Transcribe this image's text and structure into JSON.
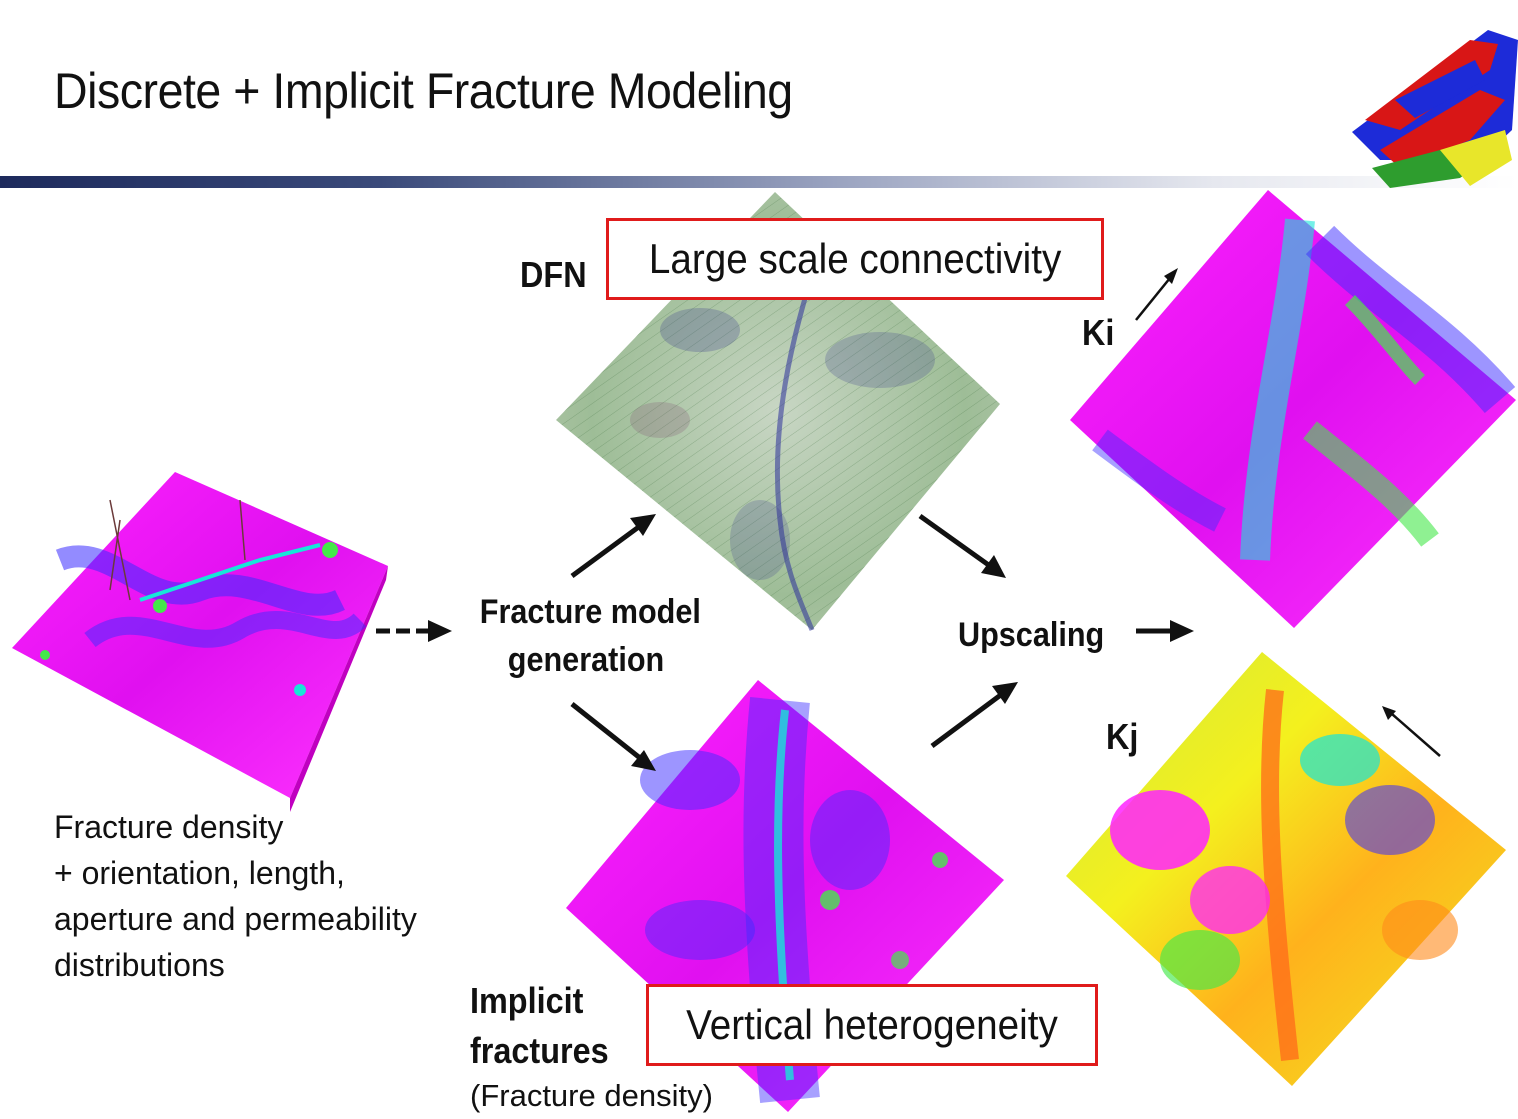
{
  "title": "Discrete + Implicit Fracture Modeling",
  "labels": {
    "dfn": "DFN",
    "large_scale": "Large scale connectivity",
    "ki": "Ki",
    "kj": "Kj",
    "fracture_model_line1": "Fracture model",
    "fracture_model_line2": "generation",
    "upscaling": "Upscaling",
    "input_line1": "Fracture density",
    "input_line2": "+ orientation, length,",
    "input_line3": "aperture and permeability",
    "input_line4": "distributions",
    "implicit_line1": "Implicit",
    "implicit_line2": "fractures",
    "implicit_line3": "(Fracture density)",
    "vertical": "Vertical heterogeneity"
  },
  "colors": {
    "callout_border": "#e01b1b",
    "magenta": "#ff00ff",
    "blue": "#3b2cff",
    "cyan": "#17e6d8",
    "green": "#44e84a",
    "yellow": "#f0f020",
    "orange": "#ff7a1a",
    "dfn_green": "#8fb38a"
  }
}
